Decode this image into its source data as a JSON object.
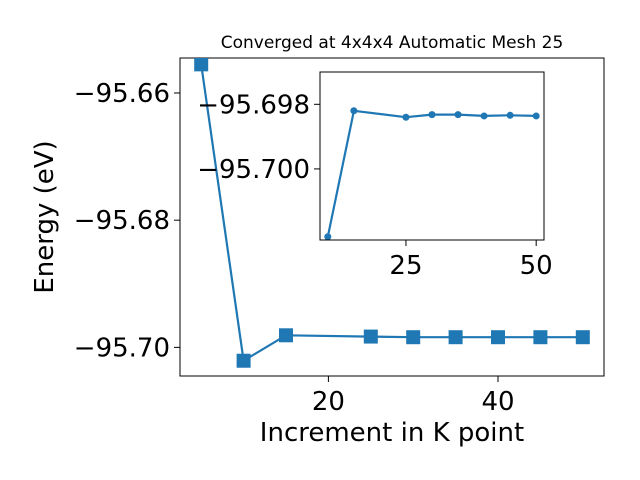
{
  "chart_data": [
    {
      "type": "line",
      "title": "Converged at 4x4x4 Automatic Mesh 25",
      "xlabel": "Increment in K point",
      "ylabel": "Energy (eV)",
      "xlim": [
        2.5,
        52.5
      ],
      "ylim": [
        -95.7045,
        -95.6545
      ],
      "xticks": [
        20,
        40
      ],
      "yticks": [
        -95.66,
        -95.68,
        -95.7
      ],
      "ytick_labels": [
        "−95.66",
        "−95.68",
        "−95.70"
      ],
      "color": "#1f77b4",
      "marker": "square",
      "grid": false,
      "x": [
        5,
        10,
        15,
        25,
        30,
        35,
        40,
        45,
        50
      ],
      "y": [
        -95.6555,
        -95.7021,
        -95.6981,
        -95.6983,
        -95.6984,
        -95.6984,
        -95.6984,
        -95.6984,
        -95.6984
      ]
    },
    {
      "type": "line",
      "title": "",
      "xlabel": "",
      "ylabel": "",
      "xlim": [
        8.5,
        51.5
      ],
      "ylim": [
        -95.7022,
        -95.697
      ],
      "xticks": [
        25,
        50
      ],
      "yticks": [
        -95.7,
        -95.698
      ],
      "ytick_labels": [
        "−95.700",
        "−95.698"
      ],
      "color": "#1f77b4",
      "marker": "circle",
      "grid": false,
      "x": [
        10,
        15,
        25,
        30,
        35,
        40,
        45,
        50
      ],
      "y": [
        -95.7021,
        -95.6982,
        -95.6984,
        -95.69832,
        -95.69832,
        -95.69836,
        -95.69834,
        -95.69836
      ]
    }
  ]
}
